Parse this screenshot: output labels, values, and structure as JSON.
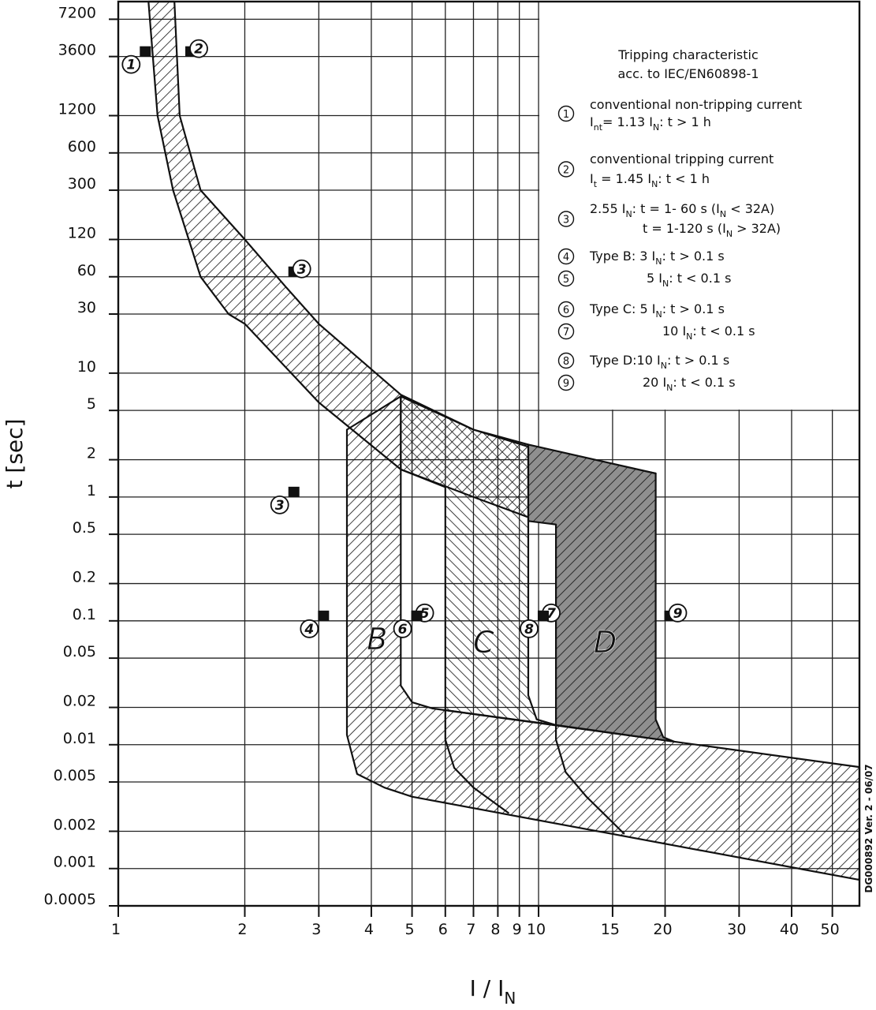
{
  "chart_data": {
    "type": "area",
    "x_label": [
      "I / I",
      "N"
    ],
    "y_label": "t [sec]",
    "side_note": "DG000892 Ver. 2 - 06/07",
    "xlim": [
      1,
      58
    ],
    "ylim": [
      0.0005,
      10000
    ],
    "log_x": true,
    "log_y": true,
    "grid": true,
    "xticks": [
      1,
      2,
      3,
      4,
      5,
      6,
      7,
      8,
      9,
      10,
      15,
      20,
      30,
      40,
      50
    ],
    "yticks": [
      7200,
      3600,
      1200,
      600,
      300,
      120,
      60,
      30,
      10,
      5,
      2,
      1,
      0.5,
      0.2,
      0.1,
      0.05,
      0.02,
      0.01,
      0.005,
      0.002,
      0.001,
      0.0005
    ],
    "regions": [
      {
        "pattern": "forward",
        "x": [
          1.36,
          1.4,
          1.57,
          2,
          2.5,
          3,
          4.7,
          7,
          10,
          19,
          11,
          10,
          7,
          4.7,
          3,
          2,
          1.83,
          1.57,
          1.35,
          1.24,
          1.18
        ],
        "y": [
          10000,
          1200,
          300,
          120,
          50,
          25,
          6.7,
          3.5,
          2.4,
          1.55,
          0.6,
          0.64,
          1.0,
          1.67,
          5.8,
          25,
          30,
          60,
          300,
          1200,
          10000
        ]
      },
      {
        "label": "B",
        "pattern": "forward",
        "x": [
          3.5,
          3.5,
          3.7,
          4.3,
          5,
          58,
          58,
          5.6,
          5,
          4.7,
          4.7
        ],
        "y": [
          3.5,
          0.012,
          0.0058,
          0.0045,
          0.0038,
          0.00081,
          0.0066,
          0.0196,
          0.022,
          0.03,
          6.5
        ]
      },
      {
        "label": "C",
        "pattern": "backward",
        "x": [
          4.7,
          7,
          9.45,
          9.45,
          9.9,
          11,
          6,
          6,
          4.7
        ],
        "y": [
          6.5,
          3.5,
          2.65,
          0.025,
          0.016,
          0.0144,
          0.019,
          1.2,
          1.67
        ]
      },
      {
        "label": "D",
        "pattern": "forward",
        "color": "#8f8f8f",
        "x": [
          9.45,
          19,
          19,
          19.8,
          21,
          11,
          11,
          9.45
        ],
        "y": [
          2.65,
          1.55,
          0.016,
          0.0115,
          0.0106,
          0.0144,
          0.6,
          0.64
        ]
      }
    ],
    "curves": [
      {
        "x": [
          6,
          6,
          6.3,
          7,
          8.5
        ],
        "y": [
          0.019,
          0.011,
          0.0065,
          0.0045,
          0.0028
        ]
      },
      {
        "x": [
          11,
          11,
          11.6,
          13,
          16
        ],
        "y": [
          0.0144,
          0.011,
          0.006,
          0.0038,
          0.0019
        ]
      }
    ],
    "markers": [
      {
        "label": "1",
        "x": 1.13,
        "y": 3600
      },
      {
        "label": "2",
        "x": 1.45,
        "y": 3600
      },
      {
        "label": "3",
        "x": 2.55,
        "y": 60
      },
      {
        "label": "3",
        "x": 2.55,
        "y": 1
      },
      {
        "label": "4",
        "x": 3,
        "y": 0.1
      },
      {
        "label": "5",
        "x": 5,
        "y": 0.1
      },
      {
        "label": "6",
        "x": 5,
        "y": 0.1
      },
      {
        "label": "7",
        "x": 10,
        "y": 0.1
      },
      {
        "label": "8",
        "x": 10,
        "y": 0.1
      },
      {
        "label": "9",
        "x": 20,
        "y": 0.1
      }
    ],
    "legend": {
      "title": [
        "Tripping characteristic",
        "acc. to IEC/EN60898-1"
      ],
      "items": [
        {
          "number": "1",
          "lines": [
            [
              "conventional non-tripping current"
            ],
            [
              "I",
              "nt",
              "= 1.13 I",
              "N",
              ": t > 1 h"
            ]
          ]
        },
        {
          "number": "2",
          "lines": [
            [
              "conventional tripping current"
            ],
            [
              "I",
              "t",
              " = 1.45 I",
              "N",
              ": t < 1 h"
            ]
          ]
        },
        {
          "number": "3",
          "lines": [
            [
              "2.55 I",
              "N",
              ": t = 1- 60 s (I",
              "N",
              " < 32A)"
            ],
            [
              "t = 1-120 s (I",
              "N",
              " > 32A)"
            ]
          ]
        },
        {
          "number": "4",
          "lines": [
            [
              "Type B: 3 I",
              "N",
              ": t > 0.1 s"
            ]
          ]
        },
        {
          "number": "5",
          "lines": [
            [
              "5 I",
              "N",
              ": t < 0.1 s"
            ]
          ]
        },
        {
          "number": "6",
          "lines": [
            [
              "Type C: 5 I",
              "N",
              ": t > 0.1 s"
            ]
          ]
        },
        {
          "number": "7",
          "lines": [
            [
              "10 I",
              "N",
              ": t < 0.1 s"
            ]
          ]
        },
        {
          "number": "8",
          "lines": [
            [
              "Type D:10 I",
              "N",
              ": t > 0.1 s"
            ]
          ]
        },
        {
          "number": "9",
          "lines": [
            [
              "20 I",
              "N",
              ": t < 0.1 s"
            ]
          ]
        }
      ]
    }
  }
}
